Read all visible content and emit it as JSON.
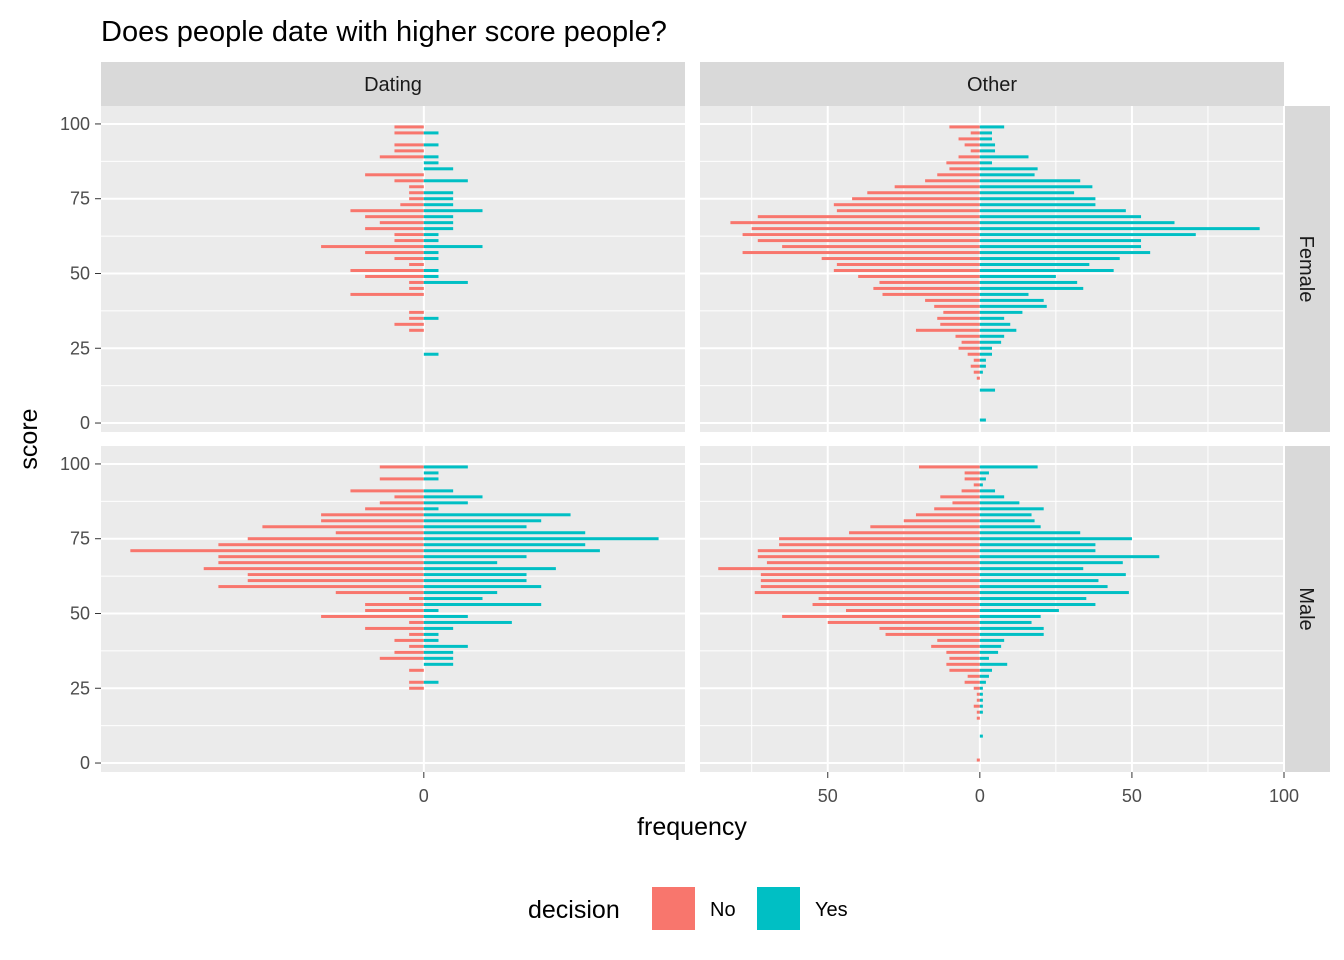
{
  "chart_data": {
    "type": "bar",
    "orientation": "horizontal",
    "layout": "facet_grid",
    "title": "Does people date with higher score people?",
    "xlabel": "frequency",
    "ylabel": "score",
    "grid": true,
    "legend": {
      "position": "bottom",
      "title": "decision",
      "labels": [
        "No",
        "Yes"
      ]
    },
    "colors": {
      "No": "#F8766D",
      "Yes": "#00BFC4",
      "panel_bg": "#EBEBEB",
      "strip_bg": "#D9D9D9",
      "grid": "#FFFFFF"
    },
    "columns": [
      "Dating",
      "Other"
    ],
    "rows": [
      "Female",
      "Male"
    ],
    "y_ticks": [
      0,
      25,
      50,
      75,
      100
    ],
    "ylim": [
      -3,
      106
    ],
    "x_ticks": {
      "Dating": [
        0
      ],
      "Other": [
        50,
        0,
        50,
        100
      ]
    },
    "xlim": {
      "Dating": [
        -110,
        89
      ],
      "Other": [
        -92,
        100
      ]
    },
    "bin_width": 2,
    "panels": [
      {
        "col": "Dating",
        "row": "Female",
        "no": [
          [
            99,
            10
          ],
          [
            97,
            10
          ],
          [
            93,
            10
          ],
          [
            91,
            10
          ],
          [
            89,
            15
          ],
          [
            83,
            20
          ],
          [
            81,
            10
          ],
          [
            79,
            5
          ],
          [
            77,
            5
          ],
          [
            75,
            5
          ],
          [
            73,
            8
          ],
          [
            71,
            25
          ],
          [
            69,
            20
          ],
          [
            67,
            15
          ],
          [
            65,
            20
          ],
          [
            63,
            10
          ],
          [
            61,
            10
          ],
          [
            59,
            35
          ],
          [
            57,
            20
          ],
          [
            55,
            10
          ],
          [
            53,
            5
          ],
          [
            51,
            25
          ],
          [
            49,
            20
          ],
          [
            47,
            5
          ],
          [
            45,
            5
          ],
          [
            43,
            25
          ],
          [
            37,
            5
          ],
          [
            35,
            5
          ],
          [
            33,
            10
          ],
          [
            31,
            5
          ]
        ],
        "yes": [
          [
            97,
            5
          ],
          [
            93,
            5
          ],
          [
            89,
            5
          ],
          [
            87,
            5
          ],
          [
            85,
            10
          ],
          [
            81,
            15
          ],
          [
            77,
            10
          ],
          [
            75,
            10
          ],
          [
            73,
            10
          ],
          [
            71,
            20
          ],
          [
            69,
            10
          ],
          [
            67,
            10
          ],
          [
            65,
            10
          ],
          [
            63,
            5
          ],
          [
            61,
            5
          ],
          [
            59,
            20
          ],
          [
            57,
            5
          ],
          [
            55,
            5
          ],
          [
            51,
            5
          ],
          [
            49,
            5
          ],
          [
            47,
            15
          ],
          [
            35,
            5
          ],
          [
            23,
            5
          ]
        ]
      },
      {
        "col": "Other",
        "row": "Female",
        "no": [
          [
            99,
            10
          ],
          [
            97,
            3
          ],
          [
            95,
            7
          ],
          [
            93,
            5
          ],
          [
            91,
            3
          ],
          [
            89,
            7
          ],
          [
            87,
            11
          ],
          [
            85,
            10
          ],
          [
            83,
            14
          ],
          [
            81,
            18
          ],
          [
            79,
            28
          ],
          [
            77,
            37
          ],
          [
            75,
            42
          ],
          [
            73,
            48
          ],
          [
            71,
            47
          ],
          [
            69,
            73
          ],
          [
            67,
            82
          ],
          [
            65,
            75
          ],
          [
            63,
            78
          ],
          [
            61,
            73
          ],
          [
            59,
            65
          ],
          [
            57,
            78
          ],
          [
            55,
            52
          ],
          [
            53,
            47
          ],
          [
            51,
            48
          ],
          [
            49,
            40
          ],
          [
            47,
            33
          ],
          [
            45,
            35
          ],
          [
            43,
            32
          ],
          [
            41,
            18
          ],
          [
            39,
            15
          ],
          [
            37,
            12
          ],
          [
            35,
            14
          ],
          [
            33,
            13
          ],
          [
            31,
            21
          ],
          [
            29,
            8
          ],
          [
            27,
            6
          ],
          [
            25,
            7
          ],
          [
            23,
            4
          ],
          [
            21,
            2
          ],
          [
            19,
            3
          ],
          [
            17,
            2
          ],
          [
            15,
            1
          ]
        ],
        "yes": [
          [
            99,
            8
          ],
          [
            97,
            4
          ],
          [
            95,
            4
          ],
          [
            93,
            5
          ],
          [
            91,
            5
          ],
          [
            89,
            16
          ],
          [
            87,
            4
          ],
          [
            85,
            19
          ],
          [
            83,
            18
          ],
          [
            81,
            33
          ],
          [
            79,
            37
          ],
          [
            77,
            31
          ],
          [
            75,
            38
          ],
          [
            73,
            38
          ],
          [
            71,
            48
          ],
          [
            69,
            53
          ],
          [
            67,
            64
          ],
          [
            65,
            92
          ],
          [
            63,
            71
          ],
          [
            61,
            53
          ],
          [
            59,
            53
          ],
          [
            57,
            56
          ],
          [
            55,
            46
          ],
          [
            53,
            36
          ],
          [
            51,
            44
          ],
          [
            49,
            25
          ],
          [
            47,
            32
          ],
          [
            45,
            34
          ],
          [
            43,
            16
          ],
          [
            41,
            21
          ],
          [
            39,
            22
          ],
          [
            37,
            14
          ],
          [
            35,
            8
          ],
          [
            33,
            10
          ],
          [
            31,
            12
          ],
          [
            29,
            8
          ],
          [
            27,
            7
          ],
          [
            25,
            4
          ],
          [
            23,
            4
          ],
          [
            21,
            2
          ],
          [
            19,
            2
          ],
          [
            17,
            1
          ],
          [
            11,
            5
          ],
          [
            1,
            2
          ]
        ]
      },
      {
        "col": "Dating",
        "row": "Male",
        "no": [
          [
            99,
            15
          ],
          [
            95,
            15
          ],
          [
            91,
            25
          ],
          [
            89,
            10
          ],
          [
            87,
            15
          ],
          [
            85,
            20
          ],
          [
            83,
            35
          ],
          [
            81,
            35
          ],
          [
            79,
            55
          ],
          [
            77,
            30
          ],
          [
            75,
            60
          ],
          [
            73,
            70
          ],
          [
            71,
            100
          ],
          [
            69,
            70
          ],
          [
            67,
            70
          ],
          [
            65,
            75
          ],
          [
            63,
            60
          ],
          [
            61,
            60
          ],
          [
            59,
            70
          ],
          [
            57,
            30
          ],
          [
            55,
            5
          ],
          [
            53,
            20
          ],
          [
            51,
            20
          ],
          [
            49,
            35
          ],
          [
            47,
            5
          ],
          [
            45,
            20
          ],
          [
            43,
            5
          ],
          [
            41,
            10
          ],
          [
            39,
            5
          ],
          [
            37,
            10
          ],
          [
            35,
            15
          ],
          [
            31,
            5
          ],
          [
            27,
            5
          ],
          [
            25,
            5
          ]
        ],
        "yes": [
          [
            99,
            15
          ],
          [
            97,
            5
          ],
          [
            95,
            5
          ],
          [
            91,
            10
          ],
          [
            89,
            20
          ],
          [
            87,
            15
          ],
          [
            85,
            5
          ],
          [
            83,
            50
          ],
          [
            81,
            40
          ],
          [
            79,
            35
          ],
          [
            77,
            55
          ],
          [
            75,
            80
          ],
          [
            73,
            55
          ],
          [
            71,
            60
          ],
          [
            69,
            35
          ],
          [
            67,
            25
          ],
          [
            65,
            45
          ],
          [
            63,
            35
          ],
          [
            61,
            35
          ],
          [
            59,
            40
          ],
          [
            57,
            25
          ],
          [
            55,
            20
          ],
          [
            53,
            40
          ],
          [
            51,
            5
          ],
          [
            49,
            15
          ],
          [
            47,
            30
          ],
          [
            45,
            10
          ],
          [
            43,
            5
          ],
          [
            41,
            5
          ],
          [
            39,
            15
          ],
          [
            37,
            10
          ],
          [
            35,
            10
          ],
          [
            33,
            10
          ],
          [
            27,
            5
          ]
        ]
      },
      {
        "col": "Other",
        "row": "Male",
        "no": [
          [
            99,
            20
          ],
          [
            97,
            5
          ],
          [
            95,
            5
          ],
          [
            93,
            2
          ],
          [
            91,
            6
          ],
          [
            89,
            13
          ],
          [
            87,
            9
          ],
          [
            85,
            15
          ],
          [
            83,
            21
          ],
          [
            81,
            25
          ],
          [
            79,
            36
          ],
          [
            77,
            43
          ],
          [
            75,
            66
          ],
          [
            73,
            66
          ],
          [
            71,
            73
          ],
          [
            69,
            73
          ],
          [
            67,
            70
          ],
          [
            65,
            86
          ],
          [
            63,
            72
          ],
          [
            61,
            72
          ],
          [
            59,
            72
          ],
          [
            57,
            74
          ],
          [
            55,
            53
          ],
          [
            53,
            55
          ],
          [
            51,
            44
          ],
          [
            49,
            65
          ],
          [
            47,
            50
          ],
          [
            45,
            33
          ],
          [
            43,
            31
          ],
          [
            41,
            14
          ],
          [
            39,
            16
          ],
          [
            37,
            11
          ],
          [
            35,
            10
          ],
          [
            33,
            11
          ],
          [
            31,
            10
          ],
          [
            29,
            4
          ],
          [
            27,
            5
          ],
          [
            25,
            2
          ],
          [
            23,
            1
          ],
          [
            21,
            1
          ],
          [
            19,
            2
          ],
          [
            17,
            1
          ],
          [
            15,
            1
          ],
          [
            1,
            1
          ]
        ],
        "yes": [
          [
            99,
            19
          ],
          [
            97,
            3
          ],
          [
            95,
            2
          ],
          [
            93,
            1
          ],
          [
            91,
            5
          ],
          [
            89,
            8
          ],
          [
            87,
            13
          ],
          [
            85,
            21
          ],
          [
            83,
            17
          ],
          [
            81,
            18
          ],
          [
            79,
            20
          ],
          [
            77,
            33
          ],
          [
            75,
            50
          ],
          [
            73,
            38
          ],
          [
            71,
            38
          ],
          [
            69,
            59
          ],
          [
            67,
            47
          ],
          [
            65,
            34
          ],
          [
            63,
            48
          ],
          [
            61,
            39
          ],
          [
            59,
            42
          ],
          [
            57,
            49
          ],
          [
            55,
            35
          ],
          [
            53,
            38
          ],
          [
            51,
            26
          ],
          [
            49,
            20
          ],
          [
            47,
            17
          ],
          [
            45,
            21
          ],
          [
            43,
            21
          ],
          [
            41,
            8
          ],
          [
            39,
            7
          ],
          [
            37,
            6
          ],
          [
            35,
            3
          ],
          [
            33,
            9
          ],
          [
            31,
            4
          ],
          [
            29,
            3
          ],
          [
            27,
            2
          ],
          [
            25,
            1
          ],
          [
            23,
            1
          ],
          [
            21,
            1
          ],
          [
            19,
            1
          ],
          [
            17,
            1
          ],
          [
            9,
            1
          ]
        ]
      }
    ]
  }
}
